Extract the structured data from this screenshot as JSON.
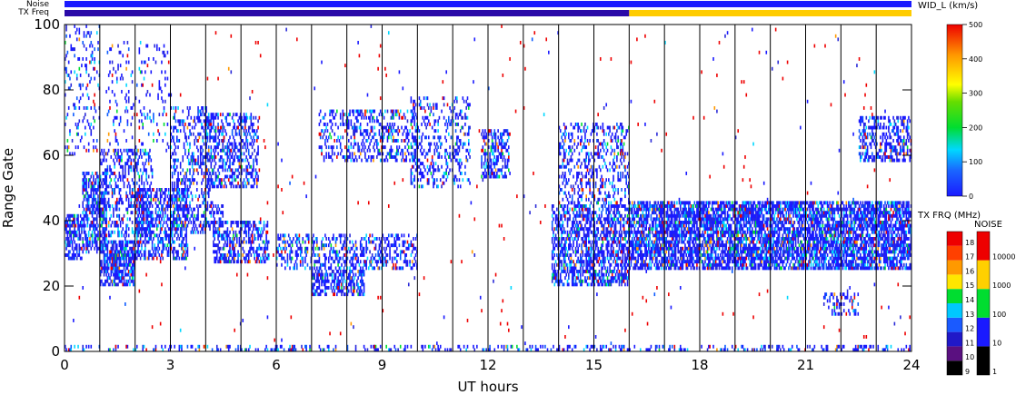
{
  "chart_data": {
    "type": "heatmap",
    "title": "",
    "xlabel": "UT hours",
    "ylabel": "Range Gate",
    "xlim": [
      0,
      24
    ],
    "ylim": [
      0,
      100
    ],
    "x_ticks": [
      0,
      3,
      6,
      9,
      12,
      15,
      18,
      21,
      24
    ],
    "y_ticks": [
      0,
      20,
      40,
      60,
      80,
      100
    ],
    "hour_lines": [
      1,
      2,
      3,
      4,
      5,
      6,
      7,
      8,
      9,
      10,
      11,
      12,
      13,
      14,
      15,
      16,
      17,
      18,
      19,
      20,
      21,
      22,
      23
    ],
    "status_bars": {
      "noise_label": "Noise",
      "txfreq_label": "TX Freq",
      "noise_color": "#1a1aff",
      "txfreq_segments": [
        {
          "from": 0,
          "to": 16,
          "color": "#2a0aa8"
        },
        {
          "from": 16,
          "to": 24,
          "color": "#ffcc00"
        }
      ]
    },
    "colorbars": {
      "width": {
        "title": "WID_L (km/s)",
        "min": 0,
        "max": 500,
        "ticks": [
          0,
          100,
          200,
          300,
          400,
          500
        ]
      },
      "txfreq": {
        "title": "TX FRQ (MHz)",
        "labels": [
          "9",
          "10",
          "11",
          "12",
          "13",
          "14",
          "15",
          "16",
          "17",
          "18"
        ],
        "colors": [
          "#000000",
          "#5a1080",
          "#2018c8",
          "#1a5aff",
          "#00c8ff",
          "#00dd30",
          "#ffe600",
          "#ff9900",
          "#ff4000",
          "#ee0000"
        ]
      },
      "noise": {
        "title": "NOISE",
        "labels": [
          "1",
          "10",
          "100",
          "1000",
          "10000"
        ],
        "colors": [
          "#000000",
          "#1a1aff",
          "#00dd30",
          "#ffd000",
          "#ee0000"
        ]
      }
    },
    "regions": [
      {
        "t0": 0.0,
        "t1": 0.5,
        "g0": 28,
        "g1": 42,
        "density": 0.65
      },
      {
        "t0": 0.5,
        "t1": 1.2,
        "g0": 30,
        "g1": 55,
        "density": 0.55
      },
      {
        "t0": 0.0,
        "t1": 1.0,
        "g0": 60,
        "g1": 100,
        "density": 0.12
      },
      {
        "t0": 1.0,
        "t1": 2.0,
        "g0": 20,
        "g1": 34,
        "density": 0.7
      },
      {
        "t0": 1.0,
        "t1": 2.5,
        "g0": 35,
        "g1": 62,
        "density": 0.3
      },
      {
        "t0": 1.2,
        "t1": 3.0,
        "g0": 60,
        "g1": 95,
        "density": 0.08
      },
      {
        "t0": 2.0,
        "t1": 3.5,
        "g0": 28,
        "g1": 50,
        "density": 0.5
      },
      {
        "t0": 3.0,
        "t1": 4.5,
        "g0": 36,
        "g1": 45,
        "density": 0.4
      },
      {
        "t0": 3.0,
        "t1": 4.2,
        "g0": 45,
        "g1": 75,
        "density": 0.3
      },
      {
        "t0": 4.0,
        "t1": 5.5,
        "g0": 50,
        "g1": 73,
        "density": 0.4
      },
      {
        "t0": 4.2,
        "t1": 5.8,
        "g0": 27,
        "g1": 40,
        "density": 0.5
      },
      {
        "t0": 6.0,
        "t1": 10.0,
        "g0": 25,
        "g1": 36,
        "density": 0.35
      },
      {
        "t0": 7.0,
        "t1": 8.5,
        "g0": 17,
        "g1": 25,
        "density": 0.55
      },
      {
        "t0": 7.2,
        "t1": 10.0,
        "g0": 58,
        "g1": 74,
        "density": 0.3
      },
      {
        "t0": 9.8,
        "t1": 11.5,
        "g0": 50,
        "g1": 78,
        "density": 0.25
      },
      {
        "t0": 11.8,
        "t1": 12.6,
        "g0": 53,
        "g1": 68,
        "density": 0.45
      },
      {
        "t0": 13.8,
        "t1": 16.0,
        "g0": 20,
        "g1": 45,
        "density": 0.55
      },
      {
        "t0": 14.0,
        "t1": 16.0,
        "g0": 45,
        "g1": 70,
        "density": 0.3
      },
      {
        "t0": 16.0,
        "t1": 24.0,
        "g0": 25,
        "g1": 46,
        "density": 0.7
      },
      {
        "t0": 22.5,
        "t1": 24.0,
        "g0": 58,
        "g1": 72,
        "density": 0.45
      },
      {
        "t0": 21.5,
        "t1": 22.5,
        "g0": 11,
        "g1": 18,
        "density": 0.3
      },
      {
        "t0": 0.0,
        "t1": 24.0,
        "g0": 0,
        "g1": 2,
        "density": 0.25
      },
      {
        "t0": 0.0,
        "t1": 24.0,
        "g0": 0,
        "g1": 100,
        "density": 0.006
      }
    ]
  }
}
